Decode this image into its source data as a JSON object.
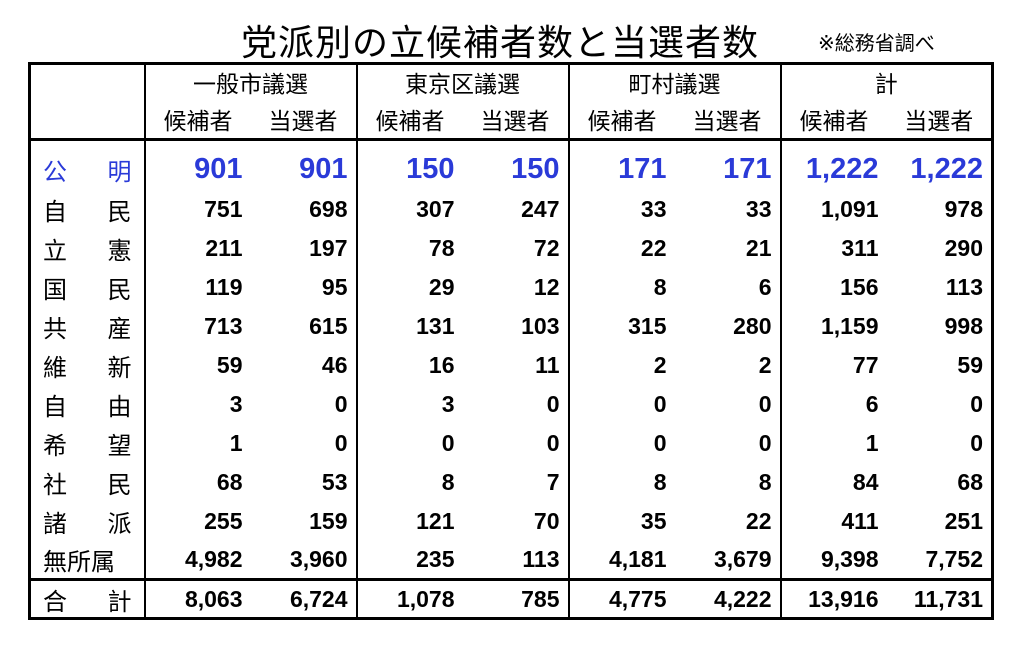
{
  "title": "党派別の立候補者数と当選者数",
  "note": "※総務省調べ",
  "chart_data": {
    "type": "table",
    "groups": [
      "一般市議選",
      "東京区議選",
      "町村議選",
      "計"
    ],
    "subheaders": [
      "候補者",
      "当選者",
      "候補者",
      "当選者",
      "候補者",
      "当選者",
      "候補者",
      "当選者"
    ],
    "highlight_color": "#2a3ad8",
    "rows": [
      {
        "label": [
          "公",
          "明"
        ],
        "values": [
          "901",
          "901",
          "150",
          "150",
          "171",
          "171",
          "1,222",
          "1,222"
        ]
      },
      {
        "label": [
          "自",
          "民"
        ],
        "values": [
          "751",
          "698",
          "307",
          "247",
          "33",
          "33",
          "1,091",
          "978"
        ]
      },
      {
        "label": [
          "立",
          "憲"
        ],
        "values": [
          "211",
          "197",
          "78",
          "72",
          "22",
          "21",
          "311",
          "290"
        ]
      },
      {
        "label": [
          "国",
          "民"
        ],
        "values": [
          "119",
          "95",
          "29",
          "12",
          "8",
          "6",
          "156",
          "113"
        ]
      },
      {
        "label": [
          "共",
          "産"
        ],
        "values": [
          "713",
          "615",
          "131",
          "103",
          "315",
          "280",
          "1,159",
          "998"
        ]
      },
      {
        "label": [
          "維",
          "新"
        ],
        "values": [
          "59",
          "46",
          "16",
          "11",
          "2",
          "2",
          "77",
          "59"
        ]
      },
      {
        "label": [
          "自",
          "由"
        ],
        "values": [
          "3",
          "0",
          "3",
          "0",
          "0",
          "0",
          "6",
          "0"
        ]
      },
      {
        "label": [
          "希",
          "望"
        ],
        "values": [
          "1",
          "0",
          "0",
          "0",
          "0",
          "0",
          "1",
          "0"
        ]
      },
      {
        "label": [
          "社",
          "民"
        ],
        "values": [
          "68",
          "53",
          "8",
          "7",
          "8",
          "8",
          "84",
          "68"
        ]
      },
      {
        "label": [
          "諸",
          "派"
        ],
        "values": [
          "255",
          "159",
          "121",
          "70",
          "35",
          "22",
          "411",
          "251"
        ]
      },
      {
        "label": [
          "無所属"
        ],
        "values": [
          "4,982",
          "3,960",
          "235",
          "113",
          "4,181",
          "3,679",
          "9,398",
          "7,752"
        ]
      }
    ],
    "total": {
      "label": [
        "合",
        "計"
      ],
      "values": [
        "8,063",
        "6,724",
        "1,078",
        "785",
        "4,775",
        "4,222",
        "13,916",
        "11,731"
      ]
    }
  }
}
